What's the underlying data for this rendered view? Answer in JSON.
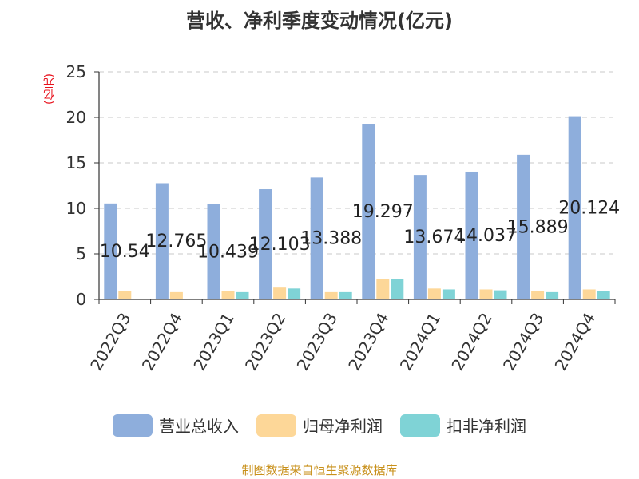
{
  "title": "营收、净利季度变动情况(亿元)",
  "source": "制图数据来自恒生聚源数据库",
  "chart_data": {
    "type": "bar",
    "ylabel": "(亿元)",
    "ylim": [
      0,
      25
    ],
    "yticks": [
      0,
      5,
      10,
      15,
      20,
      25
    ],
    "grid": true,
    "legend_position": "bottom",
    "categories": [
      "2022Q3",
      "2022Q4",
      "2023Q1",
      "2023Q2",
      "2023Q3",
      "2023Q4",
      "2024Q1",
      "2024Q2",
      "2024Q3",
      "2024Q4"
    ],
    "series": [
      {
        "name": "营业总收入",
        "color": "#8eaedc",
        "values": [
          10.54,
          12.765,
          10.439,
          12.103,
          13.388,
          19.297,
          13.674,
          14.037,
          15.889,
          20.124
        ],
        "labels": [
          "10.54",
          "12.765",
          "10.439",
          "12.103",
          "13.388",
          "19.297",
          "13.674",
          "14.037",
          "15.889",
          "20.124"
        ]
      },
      {
        "name": "归母净利润",
        "color": "#fdd798",
        "values": [
          0.9,
          0.8,
          0.9,
          1.3,
          0.8,
          2.2,
          1.2,
          1.1,
          0.9,
          1.1
        ]
      },
      {
        "name": "扣非净利润",
        "color": "#7fd3d6",
        "values": [
          0.0,
          0.0,
          0.8,
          1.2,
          0.8,
          2.2,
          1.1,
          1.0,
          0.8,
          0.9
        ]
      }
    ]
  }
}
